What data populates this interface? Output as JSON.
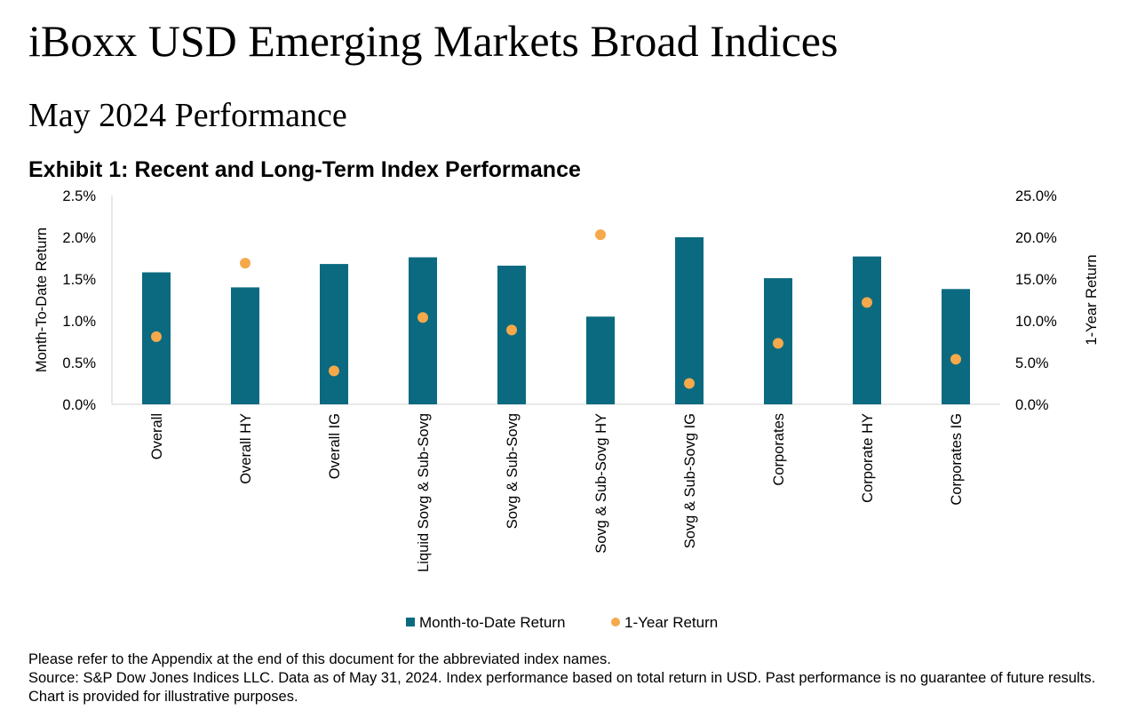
{
  "page": {
    "title": "iBoxx USD Emerging Markets Broad Indices",
    "subtitle": "May 2024 Performance",
    "exhibit_title": "Exhibit 1: Recent and Long-Term Index Performance",
    "note1": "Please refer to the Appendix at the end of this document for the abbreviated index names.",
    "note2": "Source: S&P Dow Jones Indices LLC.  Data as of May 31, 2024.  Index performance based on total return in USD.  Past performance is no guarantee of future results.  Chart is provided for illustrative purposes."
  },
  "chart_data": {
    "type": "bar",
    "title": "Exhibit 1: Recent and Long-Term Index Performance",
    "categories": [
      "Overall",
      "Overall HY",
      "Overall IG",
      "Liquid Sovg & Sub-Sovg",
      "Sovg & Sub-Sovg",
      "Sovg & Sub-Sovg HY",
      "Sovg & Sub-Sovg IG",
      "Corporates",
      "Corporate HY",
      "Corporates IG"
    ],
    "ylabel": "Month-To-Date Return",
    "y2label": "1-Year Return",
    "ylim": [
      0,
      2.5
    ],
    "y2lim": [
      0,
      25
    ],
    "y_ticks": [
      "0.0%",
      "0.5%",
      "1.0%",
      "1.5%",
      "2.0%",
      "2.5%"
    ],
    "y2_ticks": [
      "0.0%",
      "5.0%",
      "10.0%",
      "15.0%",
      "20.0%",
      "25.0%"
    ],
    "series": [
      {
        "name": "Month-to-Date Return",
        "kind": "bar",
        "axis": "left",
        "color": "#0b6a80",
        "values": [
          1.58,
          1.4,
          1.68,
          1.76,
          1.66,
          1.05,
          2.0,
          1.51,
          1.77,
          1.38
        ]
      },
      {
        "name": "1-Year Return",
        "kind": "scatter",
        "axis": "right",
        "color": "#f5a94a",
        "values": [
          8.1,
          16.9,
          4.0,
          10.4,
          8.9,
          20.3,
          2.5,
          7.3,
          12.2,
          5.4
        ]
      }
    ],
    "grid": false,
    "legend": "bottom"
  }
}
